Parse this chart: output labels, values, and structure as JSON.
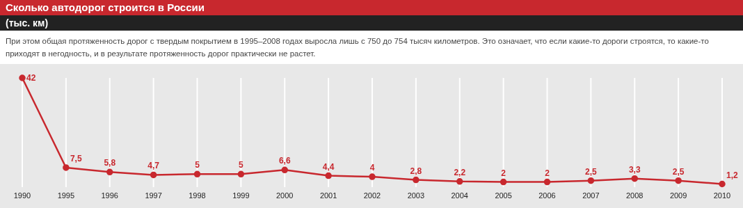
{
  "chart_data": {
    "type": "line",
    "title": "Сколько автодорог строится в России",
    "subtitle": "(тыс. км)",
    "annotations": [
      "При этом общая протяженность дорог с твердым покрытием в 1995–2008 годах выросла лишь с 750 до 754 тысяч километров. Это означает, что если какие-то дороги строятся, то какие-то приходят в негодность, и в результате протяженность дорог практически не растет."
    ],
    "categories": [
      "1990",
      "1995",
      "1996",
      "1997",
      "1998",
      "1999",
      "2000",
      "2001",
      "2002",
      "2003",
      "2004",
      "2005",
      "2006",
      "2007",
      "2008",
      "2009",
      "2010"
    ],
    "series": [
      {
        "color": "#c8282e",
        "values": [
          42,
          7.5,
          5.8,
          4.7,
          5,
          5,
          6.6,
          4.4,
          4,
          2.8,
          2.2,
          2,
          2,
          2.5,
          3.3,
          2.5,
          1.2
        ],
        "value_labels": [
          "42",
          "7,5",
          "5,8",
          "4,7",
          "5",
          "5",
          "6,6",
          "4,4",
          "4",
          "2,8",
          "2,2",
          "2",
          "2",
          "2,5",
          "3,3",
          "2,5",
          "1,2"
        ]
      }
    ],
    "grid": "x",
    "marker": "circle",
    "line_style": "solid"
  }
}
